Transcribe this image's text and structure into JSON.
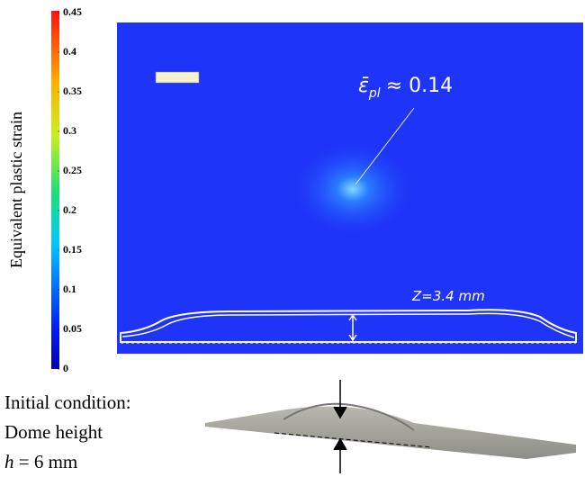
{
  "colorbar": {
    "label": "Equivalent plastic strain",
    "lim": [
      0,
      0.45
    ],
    "ticks": [
      0,
      0.05,
      0.1,
      0.15,
      0.2,
      0.25,
      0.3,
      0.35,
      0.4,
      0.45
    ]
  },
  "annotations": {
    "strain_symbol": "ε̄",
    "strain_subscript": "pl",
    "strain_value": "≈ 0.14",
    "depth": "Z=3.4 mm"
  },
  "caption": {
    "line1": "Initial condition:",
    "line2": "Dome height",
    "line3_symbol": "h",
    "line3_value": "= 6 mm"
  }
}
